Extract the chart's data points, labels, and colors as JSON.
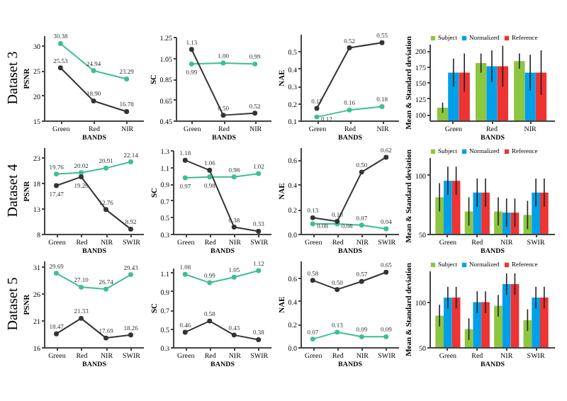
{
  "chart_data": [
    {
      "type": "line",
      "title": "Dataset 3",
      "xlabel": "BANDS",
      "ylabel": "PSNR",
      "categories": [
        "Green",
        "Red",
        "NIR"
      ],
      "ylim": [
        15,
        32
      ],
      "yticks": [
        15,
        20,
        25,
        30
      ],
      "marker": "circle",
      "series": [
        {
          "color": "#3dbf8f",
          "values": [
            30.38,
            24.94,
            23.29
          ],
          "value_labels": [
            "30.38",
            "24.94",
            "23.29"
          ]
        },
        {
          "color": "#333333",
          "values": [
            25.53,
            18.9,
            16.78
          ],
          "value_labels": [
            "25.53",
            "18.90",
            "16.78"
          ]
        }
      ]
    },
    {
      "type": "line",
      "xlabel": "BANDS",
      "ylabel": "SC",
      "categories": [
        "Green",
        "Red",
        "NIR"
      ],
      "ylim": [
        0.45,
        1.25
      ],
      "yticks": [
        0.45,
        0.65,
        0.85,
        1.05,
        1.25
      ],
      "marker": "circle",
      "series": [
        {
          "color": "#3dbf8f",
          "values": [
            0.99,
            1.0,
            0.99
          ],
          "value_labels": [
            "0.99",
            "1.00",
            "0.99"
          ]
        },
        {
          "color": "#333333",
          "values": [
            1.13,
            0.5,
            0.52
          ],
          "value_labels": [
            "1.13",
            "0.50",
            "0.52"
          ]
        }
      ]
    },
    {
      "type": "line",
      "xlabel": "BANDS",
      "ylabel": "NAE",
      "categories": [
        "Green",
        "Red",
        "NIR"
      ],
      "ylim": [
        0.1,
        0.6
      ],
      "yticks": [
        0.1,
        0.2,
        0.3,
        0.4,
        0.5
      ],
      "marker": "circle",
      "series": [
        {
          "color": "#3dbf8f",
          "values": [
            0.12,
            0.16,
            0.18
          ],
          "value_labels": [
            "0.12",
            "0.16",
            "0.18"
          ]
        },
        {
          "color": "#333333",
          "values": [
            0.17,
            0.52,
            0.55
          ],
          "value_labels": [
            "0.17",
            "0.52",
            "0.55"
          ]
        }
      ]
    },
    {
      "type": "bar",
      "xlabel": "BANDS",
      "ylabel": "Mean & Standard deviation",
      "categories": [
        "Green",
        "Red",
        "NIR"
      ],
      "ylim": [
        90,
        210
      ],
      "yticks": [
        100,
        125,
        150,
        175,
        200
      ],
      "legend": "top",
      "series": [
        {
          "name": "Subject",
          "color": "#8dc63f",
          "values": [
            110,
            180,
            183
          ],
          "errors": [
            8,
            15,
            12
          ]
        },
        {
          "name": "Normalized",
          "color": "#00a0e9",
          "values": [
            165,
            175,
            165
          ],
          "errors": [
            22,
            25,
            28
          ]
        },
        {
          "name": "Reference",
          "color": "#ee3333",
          "values": [
            165,
            175,
            165
          ],
          "errors": [
            30,
            32,
            35
          ]
        }
      ]
    },
    {
      "type": "line",
      "title": "Dataset 4",
      "xlabel": "BANDS",
      "ylabel": "PSNR",
      "categories": [
        "Green",
        "Red",
        "NIR",
        "SWIR"
      ],
      "ylim": [
        8,
        25
      ],
      "yticks": [
        8,
        13,
        18,
        23
      ],
      "marker": "circle",
      "series": [
        {
          "color": "#3dbf8f",
          "values": [
            19.76,
            20.02,
            20.91,
            22.14
          ],
          "value_labels": [
            "19.76",
            "20.02",
            "20.91",
            "22.14"
          ]
        },
        {
          "color": "#333333",
          "values": [
            17.47,
            19.2,
            12.76,
            8.92
          ],
          "value_labels": [
            "17.47",
            "19.20",
            "12.76",
            "8.92"
          ]
        }
      ]
    },
    {
      "type": "line",
      "xlabel": "BANDS",
      "ylabel": "SC",
      "categories": [
        "Green",
        "Red",
        "NIR",
        "SWIR"
      ],
      "ylim": [
        0.3,
        1.3
      ],
      "yticks": [
        0.3,
        0.5,
        0.7,
        0.9,
        1.1,
        1.3
      ],
      "marker": "circle",
      "series": [
        {
          "color": "#3dbf8f",
          "values": [
            0.97,
            0.98,
            0.98,
            1.02
          ],
          "value_labels": [
            "0.97",
            "0.98",
            "0.98",
            "1.02"
          ]
        },
        {
          "color": "#333333",
          "values": [
            1.18,
            1.06,
            0.38,
            0.33
          ],
          "value_labels": [
            "1.18",
            "1.06",
            "0.38",
            "0.33"
          ]
        }
      ]
    },
    {
      "type": "line",
      "xlabel": "BANDS",
      "ylabel": "NAE",
      "categories": [
        "Green",
        "Red",
        "NIR",
        "SWIR"
      ],
      "ylim": [
        0,
        0.7
      ],
      "yticks": [
        {
          "value": 0,
          "label": "0.0"
        },
        0.2,
        0.4,
        0.6
      ],
      "marker": "circle",
      "series": [
        {
          "color": "#3dbf8f",
          "values": [
            0.08,
            0.08,
            0.07,
            0.04
          ],
          "value_labels": [
            "0.08",
            "0.08",
            "0.07",
            "0.04"
          ]
        },
        {
          "color": "#333333",
          "values": [
            0.13,
            0.1,
            0.5,
            0.62
          ],
          "value_labels": [
            "0.13",
            "0.10",
            "0.50",
            "0.62"
          ]
        }
      ]
    },
    {
      "type": "bar",
      "xlabel": "BANDS",
      "ylabel": "Mean & Standard deviation",
      "categories": [
        "Green",
        "Red",
        "NIR",
        "SWIR"
      ],
      "ylim": [
        50,
        115
      ],
      "yticks": [
        50,
        100
      ],
      "legend": "top",
      "series": [
        {
          "name": "Subject",
          "color": "#8dc63f",
          "values": [
            81,
            69,
            69,
            66
          ],
          "errors": [
            12,
            12,
            12,
            12
          ]
        },
        {
          "name": "Normalized",
          "color": "#00a0e9",
          "values": [
            95,
            85,
            68,
            85
          ],
          "errors": [
            12,
            12,
            12,
            12
          ]
        },
        {
          "name": "Reference",
          "color": "#ee3333",
          "values": [
            95,
            85,
            68,
            85
          ],
          "errors": [
            12,
            12,
            12,
            12
          ]
        }
      ]
    },
    {
      "type": "line",
      "title": "Dataset 5",
      "xlabel": "BANDS",
      "ylabel": "PSNR",
      "categories": [
        "Green",
        "Red",
        "NIR",
        "SWIR"
      ],
      "ylim": [
        16,
        32
      ],
      "yticks": [
        16,
        21,
        26,
        31
      ],
      "marker": "circle",
      "series": [
        {
          "color": "#3dbf8f",
          "values": [
            29.69,
            27.1,
            26.74,
            29.43
          ],
          "value_labels": [
            "29.69",
            "27.10",
            "26.74",
            "29.43"
          ]
        },
        {
          "color": "#333333",
          "values": [
            18.47,
            21.33,
            17.69,
            18.26
          ],
          "value_labels": [
            "18.47",
            "21.33",
            "17.69",
            "18.26"
          ]
        }
      ]
    },
    {
      "type": "line",
      "xlabel": "BANDS",
      "ylabel": "SC",
      "categories": [
        "Green",
        "Red",
        "NIR",
        "SWIR"
      ],
      "ylim": [
        0.3,
        1.15
      ],
      "yticks": [
        0.3,
        0.5,
        0.7,
        0.9,
        1.1
      ],
      "marker": "circle",
      "series": [
        {
          "color": "#3dbf8f",
          "values": [
            1.08,
            0.99,
            1.05,
            1.12
          ],
          "value_labels": [
            "1.08",
            "0.99",
            "1.05",
            "1.12"
          ]
        },
        {
          "color": "#333333",
          "values": [
            0.46,
            0.58,
            0.43,
            0.38
          ],
          "value_labels": [
            "0.46",
            "0.58",
            "0.43",
            "0.38"
          ]
        }
      ]
    },
    {
      "type": "line",
      "xlabel": "BANDS",
      "ylabel": "NAE",
      "categories": [
        "Green",
        "Red",
        "NIR",
        "SWIR"
      ],
      "ylim": [
        0,
        0.75
      ],
      "yticks": [
        {
          "value": 0,
          "label": "0.0"
        },
        0.2,
        0.4,
        0.6
      ],
      "marker": "circle",
      "series": [
        {
          "color": "#3dbf8f",
          "values": [
            0.07,
            0.13,
            0.09,
            0.09
          ],
          "value_labels": [
            "0.07",
            "0.13",
            "0.09",
            "0.09"
          ]
        },
        {
          "color": "#333333",
          "values": [
            0.58,
            0.5,
            0.57,
            0.65
          ],
          "value_labels": [
            "0.58",
            "0.50",
            "0.57",
            "0.65"
          ]
        }
      ]
    },
    {
      "type": "bar",
      "xlabel": "BANDS",
      "ylabel": "Mean & Standard deviation",
      "categories": [
        "Green",
        "Red",
        "NIR",
        "SWIR"
      ],
      "ylim": [
        50,
        135
      ],
      "yticks": [
        50,
        100
      ],
      "legend": "top",
      "series": [
        {
          "name": "Subject",
          "color": "#8dc63f",
          "values": [
            85,
            70,
            96,
            80
          ],
          "errors": [
            12,
            12,
            12,
            12
          ]
        },
        {
          "name": "Normalized",
          "color": "#00a0e9",
          "values": [
            105,
            100,
            120,
            105
          ],
          "errors": [
            12,
            12,
            12,
            12
          ]
        },
        {
          "name": "Reference",
          "color": "#ee3333",
          "values": [
            105,
            100,
            120,
            105
          ],
          "errors": [
            12,
            12,
            12,
            12
          ]
        }
      ]
    }
  ]
}
